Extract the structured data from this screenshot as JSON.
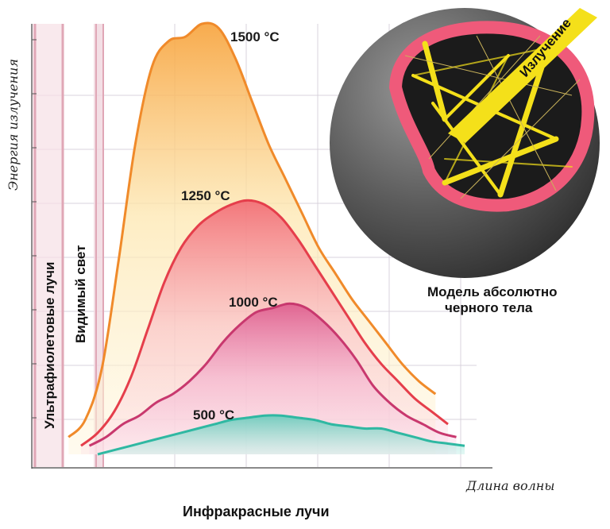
{
  "chart_data": {
    "type": "area",
    "title": "",
    "ylabel": "Энергия излучения",
    "xlabel": "Длина волны",
    "ylim": [
      0,
      1
    ],
    "xlim": [
      0,
      1
    ],
    "grid": true,
    "series": [
      {
        "name": "1500 °C",
        "color": "#f08a2a",
        "x": [
          0.05,
          0.09,
          0.13,
          0.17,
          0.21,
          0.25,
          0.29,
          0.33,
          0.37,
          0.41,
          0.45,
          0.49,
          0.53,
          0.57,
          0.61,
          0.65,
          0.69,
          0.73,
          0.77,
          0.81,
          0.85,
          0.89,
          0.93
        ],
        "values": [
          0.04,
          0.08,
          0.2,
          0.45,
          0.72,
          0.9,
          0.96,
          0.97,
          1.0,
          0.99,
          0.92,
          0.82,
          0.72,
          0.64,
          0.56,
          0.48,
          0.42,
          0.36,
          0.31,
          0.26,
          0.21,
          0.17,
          0.14
        ]
      },
      {
        "name": "1250 °C",
        "color": "#e53e4b",
        "x": [
          0.08,
          0.12,
          0.16,
          0.2,
          0.24,
          0.28,
          0.32,
          0.36,
          0.4,
          0.44,
          0.48,
          0.52,
          0.56,
          0.6,
          0.64,
          0.68,
          0.72,
          0.76,
          0.8,
          0.84,
          0.88,
          0.92,
          0.96
        ],
        "values": [
          0.02,
          0.05,
          0.1,
          0.18,
          0.29,
          0.4,
          0.48,
          0.53,
          0.56,
          0.58,
          0.59,
          0.58,
          0.55,
          0.5,
          0.44,
          0.38,
          0.32,
          0.26,
          0.21,
          0.17,
          0.13,
          0.1,
          0.07
        ]
      },
      {
        "name": "1000 °C",
        "color": "#c8386e",
        "x": [
          0.1,
          0.14,
          0.18,
          0.22,
          0.26,
          0.3,
          0.34,
          0.38,
          0.42,
          0.46,
          0.5,
          0.54,
          0.58,
          0.62,
          0.66,
          0.7,
          0.74,
          0.78,
          0.82,
          0.86,
          0.9,
          0.94,
          0.98
        ],
        "values": [
          0.02,
          0.04,
          0.07,
          0.09,
          0.12,
          0.14,
          0.17,
          0.21,
          0.26,
          0.3,
          0.33,
          0.34,
          0.35,
          0.34,
          0.31,
          0.27,
          0.22,
          0.16,
          0.12,
          0.09,
          0.07,
          0.05,
          0.04
        ]
      },
      {
        "name": "500 °C",
        "color": "#2fb8a2",
        "x": [
          0.12,
          0.16,
          0.2,
          0.24,
          0.28,
          0.32,
          0.36,
          0.4,
          0.44,
          0.48,
          0.52,
          0.56,
          0.6,
          0.64,
          0.68,
          0.72,
          0.76,
          0.8,
          0.84,
          0.88,
          0.92,
          0.96,
          1.0
        ],
        "values": [
          0.0,
          0.01,
          0.02,
          0.03,
          0.04,
          0.05,
          0.06,
          0.07,
          0.08,
          0.085,
          0.09,
          0.09,
          0.085,
          0.08,
          0.07,
          0.065,
          0.06,
          0.06,
          0.05,
          0.04,
          0.03,
          0.025,
          0.02
        ]
      }
    ],
    "annotations": {
      "uv_band": "Ультрафиолетовые лучи",
      "visible_band": "Видимый свет",
      "infrared": "Инфракрасные лучи"
    }
  },
  "blackbody": {
    "label_line1": "Модель абсолютно",
    "label_line2": "черного тела",
    "radiation_label": "Излучение",
    "shell_color": "#5a5a5a",
    "rim_color": "#ef5a7a",
    "beam_color": "#f4e01a"
  }
}
